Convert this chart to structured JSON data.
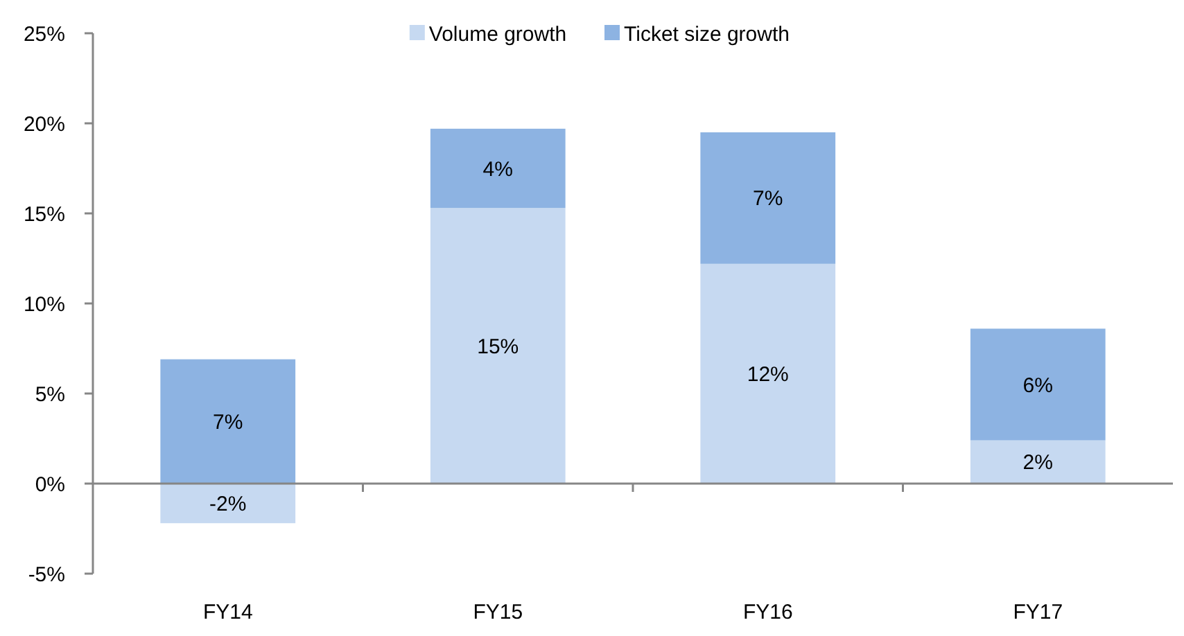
{
  "chart_data": {
    "type": "bar",
    "stacked": true,
    "categories": [
      "FY14",
      "FY15",
      "FY16",
      "FY17"
    ],
    "series": [
      {
        "name": "Volume growth",
        "color": "#c6d9f1",
        "values": [
          -2.2,
          15.3,
          12.2,
          2.4
        ],
        "value_labels": [
          "-2%",
          "15%",
          "12%",
          "2%"
        ]
      },
      {
        "name": "Ticket size growth",
        "color": "#8db3e2",
        "values": [
          6.9,
          4.4,
          7.3,
          6.2
        ],
        "value_labels": [
          "7%",
          "4%",
          "7%",
          "6%"
        ]
      }
    ],
    "ylim": [
      -5,
      25
    ],
    "yticks": [
      {
        "value": -5,
        "label": "-5%"
      },
      {
        "value": 0,
        "label": "0%"
      },
      {
        "value": 5,
        "label": "5%"
      },
      {
        "value": 10,
        "label": "10%"
      },
      {
        "value": 15,
        "label": "15%"
      },
      {
        "value": 20,
        "label": "20%"
      },
      {
        "value": 25,
        "label": "25%"
      }
    ],
    "legend": "top"
  }
}
